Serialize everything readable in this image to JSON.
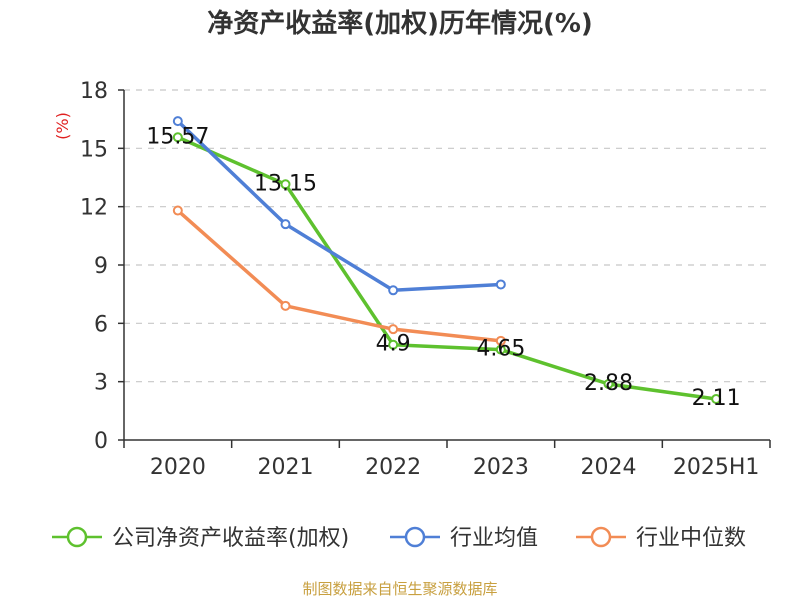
{
  "chart_data": {
    "type": "line",
    "title": "净资产收益率(加权)历年情况(%)",
    "y_unit": "(%)",
    "categories": [
      "2020",
      "2021",
      "2022",
      "2023",
      "2024",
      "2025H1"
    ],
    "ylim": [
      0,
      18
    ],
    "yticks": [
      0,
      3,
      6,
      9,
      12,
      15,
      18
    ],
    "grid": true,
    "legend_position": "bottom",
    "series": [
      {
        "name": "公司净资产收益率(加权)",
        "color": "#5ec12e",
        "values": [
          15.57,
          13.15,
          4.9,
          4.65,
          2.88,
          2.11
        ],
        "labels": [
          "15.57",
          "13.15",
          "4.9",
          "4.65",
          "2.88",
          "2.11"
        ]
      },
      {
        "name": "行业均值",
        "color": "#4f7fd6",
        "values": [
          16.4,
          11.1,
          7.7,
          8.0,
          null,
          null
        ]
      },
      {
        "name": "行业中位数",
        "color": "#f28c55",
        "values": [
          11.8,
          6.9,
          5.7,
          5.1,
          null,
          null
        ]
      }
    ]
  },
  "source": "制图数据来自恒生聚源数据库"
}
